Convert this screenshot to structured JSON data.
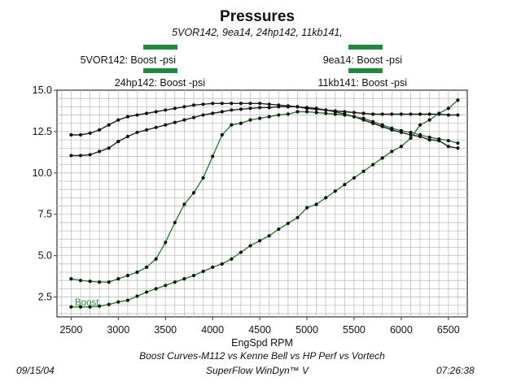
{
  "colors": {
    "legend_bar": "#1f8a3e",
    "line_black": "#222222",
    "line_green": "#2e7d32",
    "grid": "#bfbfbf",
    "plot_bg": "#ffffff"
  },
  "chart_data": {
    "type": "line",
    "title": "Pressures",
    "subtitle": "5VOR142, 9ea14, 24hp142, 11kb141,",
    "xlabel": "EngSpd  RPM",
    "ylabel": "",
    "xlim": [
      2350,
      6700
    ],
    "ylim": [
      1.3,
      15.0
    ],
    "grid": true,
    "x_ticks": [
      2500,
      3000,
      3500,
      4000,
      4500,
      5000,
      5500,
      6000,
      6500
    ],
    "x_tick_labels": [
      "2500",
      "3000",
      "3500",
      "4000",
      "4500",
      "5000",
      "5500",
      "6000",
      "6500"
    ],
    "y_ticks": [
      2.5,
      5.0,
      7.5,
      10.0,
      12.5,
      15.0
    ],
    "y_tick_labels": [
      "2.5",
      "5.0",
      "7.5",
      "10.0",
      "12.5",
      "15.0"
    ],
    "legend": [
      {
        "label": "5VOR142: Boost -psi",
        "position": "top-left"
      },
      {
        "label": "9ea14: Boost -psi",
        "position": "top-right"
      },
      {
        "label": "24hp142: Boost -psi",
        "position": "top-left"
      },
      {
        "label": "11kb141: Boost -psi",
        "position": "top-right"
      }
    ],
    "series_tag": "Boost",
    "series": [
      {
        "key": "5VOR142",
        "color": "#222222",
        "x": [
          2500,
          2600,
          2700,
          2800,
          2900,
          3000,
          3100,
          3200,
          3300,
          3400,
          3500,
          3600,
          3700,
          3800,
          3900,
          4000,
          4100,
          4200,
          4300,
          4400,
          4500,
          4600,
          4700,
          4800,
          4900,
          5000,
          5100,
          5200,
          5300,
          5400,
          5500,
          5600,
          5700,
          5800,
          5900,
          6000,
          6100,
          6200,
          6300,
          6400,
          6500,
          6600
        ],
        "values": [
          12.3,
          12.3,
          12.4,
          12.6,
          12.9,
          13.2,
          13.4,
          13.5,
          13.6,
          13.7,
          13.8,
          13.9,
          14.0,
          14.1,
          14.15,
          14.2,
          14.2,
          14.2,
          14.2,
          14.2,
          14.2,
          14.15,
          14.1,
          14.05,
          14.0,
          13.95,
          13.9,
          13.8,
          13.7,
          13.55,
          13.4,
          13.2,
          13.0,
          12.8,
          12.6,
          12.45,
          12.3,
          12.2,
          12.0,
          11.95,
          11.6,
          11.5
        ]
      },
      {
        "key": "9ea14",
        "color": "#222222",
        "x": [
          2500,
          2600,
          2700,
          2800,
          2900,
          3000,
          3100,
          3200,
          3300,
          3400,
          3500,
          3600,
          3700,
          3800,
          3900,
          4000,
          4100,
          4200,
          4300,
          4400,
          4500,
          4600,
          4700,
          4800,
          4900,
          5000,
          5100,
          5200,
          5300,
          5400,
          5500,
          5600,
          5700,
          5800,
          5900,
          6000,
          6100,
          6200,
          6300,
          6400,
          6500,
          6600
        ],
        "values": [
          11.05,
          11.05,
          11.1,
          11.3,
          11.5,
          11.9,
          12.2,
          12.45,
          12.6,
          12.75,
          12.9,
          13.05,
          13.2,
          13.35,
          13.5,
          13.6,
          13.7,
          13.8,
          13.85,
          13.9,
          13.95,
          13.95,
          14.0,
          14.0,
          14.0,
          13.9,
          13.85,
          13.8,
          13.75,
          13.7,
          13.65,
          13.6,
          13.55,
          13.55,
          13.55,
          13.55,
          13.55,
          13.55,
          13.55,
          13.55,
          13.5,
          13.5
        ]
      },
      {
        "key": "24hp142",
        "color": "#2e7d32",
        "x": [
          2500,
          2600,
          2700,
          2800,
          2900,
          3000,
          3100,
          3200,
          3300,
          3400,
          3500,
          3600,
          3700,
          3800,
          3900,
          4000,
          4100,
          4200,
          4300,
          4400,
          4500,
          4600,
          4700,
          4800,
          4900,
          5000,
          5100,
          5200,
          5300,
          5400,
          5500,
          5600,
          5700,
          5800,
          5900,
          6000,
          6100,
          6200,
          6300,
          6400,
          6500,
          6600
        ],
        "values": [
          3.6,
          3.5,
          3.45,
          3.4,
          3.4,
          3.6,
          3.8,
          4.0,
          4.3,
          4.8,
          5.8,
          7.0,
          8.1,
          8.8,
          9.7,
          11.0,
          12.3,
          12.9,
          13.0,
          13.2,
          13.3,
          13.4,
          13.5,
          13.55,
          13.7,
          13.7,
          13.65,
          13.6,
          13.55,
          13.5,
          13.4,
          13.3,
          13.1,
          12.9,
          12.7,
          12.55,
          12.45,
          12.3,
          12.15,
          12.05,
          11.95,
          11.8
        ]
      },
      {
        "key": "11kb141",
        "color": "#2e7d32",
        "x": [
          2500,
          2600,
          2700,
          2800,
          2900,
          3000,
          3100,
          3200,
          3300,
          3400,
          3500,
          3600,
          3700,
          3800,
          3900,
          4000,
          4100,
          4200,
          4300,
          4400,
          4500,
          4600,
          4700,
          4800,
          4900,
          5000,
          5100,
          5200,
          5300,
          5400,
          5500,
          5600,
          5700,
          5800,
          5900,
          6000,
          6100,
          6200,
          6300,
          6400,
          6500,
          6600
        ],
        "values": [
          1.9,
          1.9,
          1.9,
          1.95,
          2.05,
          2.2,
          2.3,
          2.55,
          2.8,
          3.0,
          3.2,
          3.4,
          3.6,
          3.8,
          4.05,
          4.3,
          4.5,
          4.8,
          5.2,
          5.6,
          5.9,
          6.2,
          6.6,
          6.95,
          7.3,
          7.9,
          8.1,
          8.5,
          8.9,
          9.3,
          9.7,
          10.1,
          10.5,
          10.9,
          11.3,
          11.6,
          12.1,
          12.9,
          13.2,
          13.6,
          13.9,
          14.4
        ]
      }
    ]
  },
  "footer": {
    "date": "09/15/04",
    "caption_line1": "Boost Curves-M112 vs Kenne Bell vs HP Perf vs Vortech",
    "caption_line2": "SuperFlow WinDyn™ V",
    "time": "07:26:38"
  }
}
